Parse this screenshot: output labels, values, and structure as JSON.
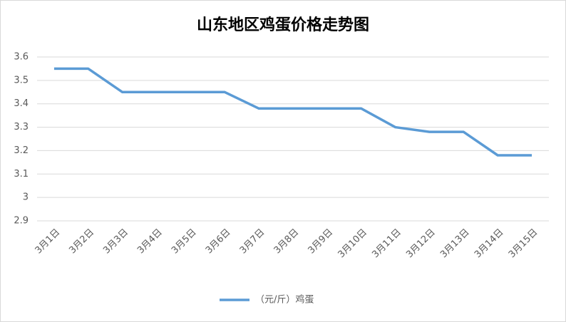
{
  "chart_data": {
    "type": "line",
    "title": "山东地区鸡蛋价格走势图",
    "categories": [
      "3月1日",
      "3月2日",
      "3月3日",
      "3月4日",
      "3月5日",
      "3月6日",
      "3月7日",
      "3月8日",
      "3月9日",
      "3月10日",
      "3月11日",
      "3月12日",
      "3月13日",
      "3月14日",
      "3月15日"
    ],
    "series": [
      {
        "name": "（元/斤）鸡蛋",
        "color": "#5b9bd5",
        "values": [
          3.55,
          3.55,
          3.45,
          3.45,
          3.45,
          3.45,
          3.38,
          3.38,
          3.38,
          3.38,
          3.3,
          3.28,
          3.28,
          3.18,
          3.18
        ]
      }
    ],
    "ylim": [
      2.9,
      3.6
    ],
    "yticks": [
      2.9,
      3,
      3.1,
      3.2,
      3.3,
      3.4,
      3.5,
      3.6
    ],
    "grid": true,
    "legend": "bottom"
  }
}
